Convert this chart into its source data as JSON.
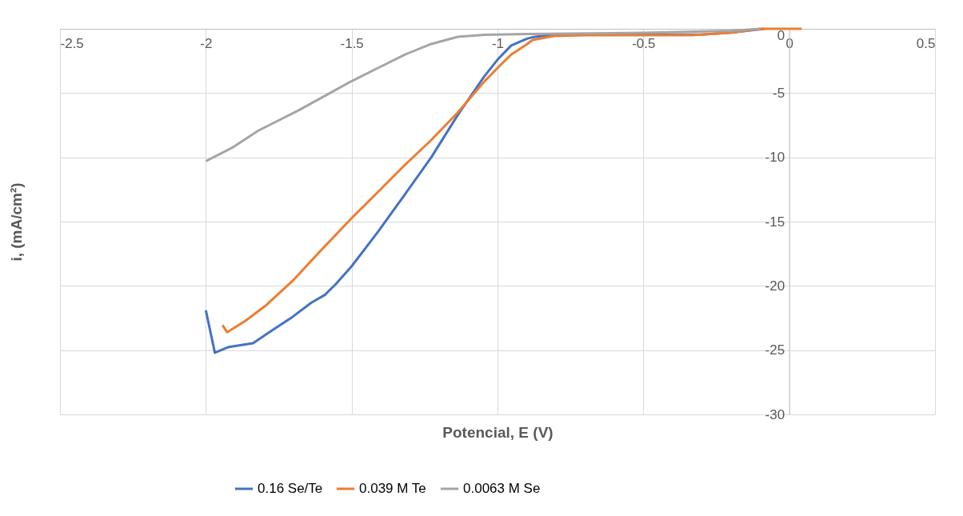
{
  "chart_data": {
    "type": "line",
    "xlabel": "Potencial, E (V)",
    "ylabel": "i, (mA/cm²)",
    "xlim": [
      -2.5,
      0.5
    ],
    "xticks": [
      -2.5,
      -2,
      -1.5,
      -1,
      -0.5,
      0,
      0.5
    ],
    "ylim": [
      -30,
      0
    ],
    "yticks": [
      -30,
      -25,
      -20,
      -15,
      -10,
      -5,
      0
    ],
    "grid": true,
    "legend": "bottom",
    "marker": "none",
    "line_style": "solid",
    "series": [
      {
        "name": "0.16 Se/Te",
        "color": "#4472c4",
        "x": [
          -2.0,
          -1.969,
          -1.921,
          -1.838,
          -1.775,
          -1.702,
          -1.638,
          -1.592,
          -1.556,
          -1.501,
          -1.41,
          -1.318,
          -1.227,
          -1.136,
          -1.045,
          -1.0,
          -0.953,
          -0.899,
          -0.88,
          -0.825,
          -0.7,
          -0.5,
          -0.3,
          -0.2,
          -0.085
        ],
        "values": [
          -21.9,
          -25.2,
          -24.75,
          -24.46,
          -23.5,
          -22.4,
          -21.3,
          -20.7,
          -19.9,
          -18.5,
          -15.8,
          -12.9,
          -10.0,
          -6.7,
          -3.7,
          -2.4,
          -1.3,
          -0.77,
          -0.66,
          -0.5,
          -0.45,
          -0.45,
          -0.45,
          -0.3,
          0
        ]
      },
      {
        "name": "0.039 M Te",
        "color": "#ed7d31",
        "x": [
          -1.943,
          -1.927,
          -1.866,
          -1.793,
          -1.702,
          -1.61,
          -1.501,
          -1.41,
          -1.318,
          -1.227,
          -1.136,
          -1.045,
          -1.0,
          -0.953,
          -0.899,
          -0.88,
          -0.807,
          -0.698,
          -0.515,
          -0.333,
          -0.197,
          -0.097,
          0.043
        ],
        "values": [
          -23.05,
          -23.6,
          -22.75,
          -21.5,
          -19.6,
          -17.35,
          -14.75,
          -12.7,
          -10.6,
          -8.65,
          -6.5,
          -4.1,
          -3.05,
          -2.0,
          -1.2,
          -0.87,
          -0.56,
          -0.5,
          -0.5,
          -0.5,
          -0.29,
          0,
          0
        ]
      },
      {
        "name": "0.0063 M Se",
        "color": "#a5a5a5",
        "x": [
          -2.0,
          -1.911,
          -1.82,
          -1.683,
          -1.592,
          -1.501,
          -1.41,
          -1.318,
          -1.227,
          -1.136,
          -1.045,
          -0.899,
          -0.5,
          -0.2,
          -0.1
        ],
        "values": [
          -10.3,
          -9.27,
          -7.92,
          -6.36,
          -5.22,
          -4.08,
          -3.05,
          -2.01,
          -1.18,
          -0.62,
          -0.46,
          -0.41,
          -0.31,
          -0.15,
          0
        ]
      }
    ]
  }
}
